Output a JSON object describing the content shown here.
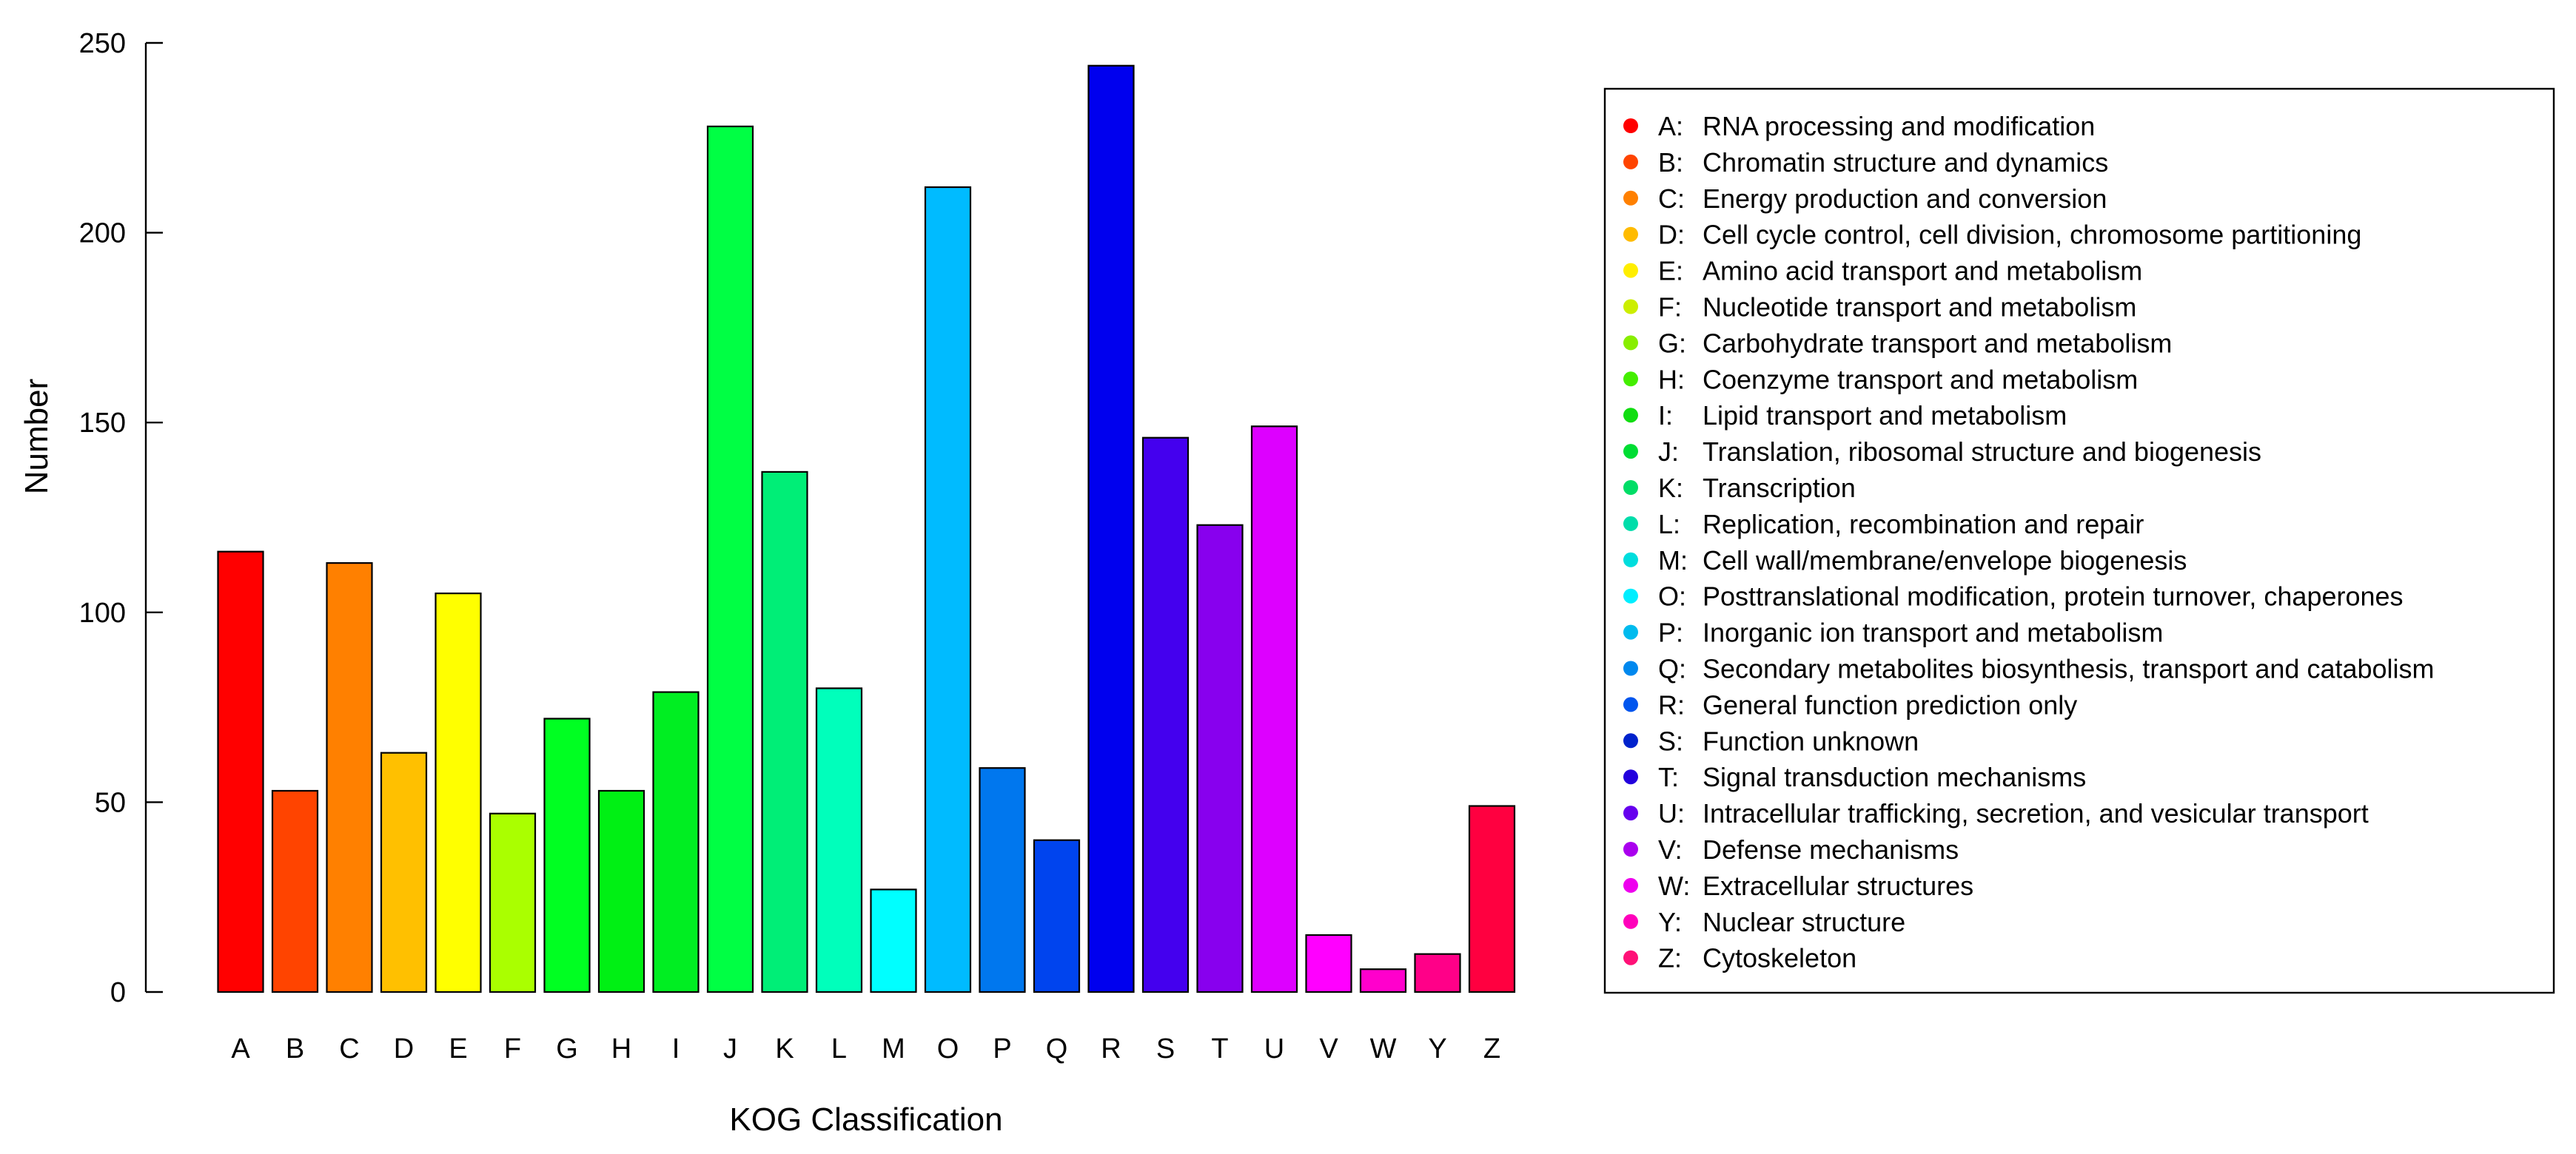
{
  "chart_data": {
    "type": "bar",
    "xlabel": "KOG Classification",
    "ylabel": "Number",
    "ylim": [
      0,
      250
    ],
    "yticks": [
      0,
      50,
      100,
      150,
      200,
      250
    ],
    "categories": [
      "A",
      "B",
      "C",
      "D",
      "E",
      "F",
      "G",
      "H",
      "I",
      "J",
      "K",
      "L",
      "M",
      "O",
      "P",
      "Q",
      "R",
      "S",
      "T",
      "U",
      "V",
      "W",
      "Y",
      "Z"
    ],
    "values": [
      116,
      53,
      113,
      63,
      105,
      47,
      72,
      53,
      79,
      228,
      137,
      80,
      27,
      212,
      59,
      40,
      244,
      146,
      123,
      149,
      15,
      6,
      10,
      49
    ],
    "colors": [
      "#ff0000",
      "#ff4400",
      "#ff8000",
      "#ffc000",
      "#ffff00",
      "#aaff00",
      "#00ff22",
      "#00f014",
      "#00ee22",
      "#00ff44",
      "#00ee77",
      "#00ffbb",
      "#00ffff",
      "#00bbff",
      "#0077ee",
      "#0044ee",
      "#0000ee",
      "#4400ee",
      "#8800ee",
      "#dd00ff",
      "#ff00ff",
      "#ff00cc",
      "#ff0088",
      "#ff0040"
    ],
    "legend_position": "right",
    "legend": [
      {
        "code": "A",
        "desc": "RNA processing and modification",
        "color": "#ff0000"
      },
      {
        "code": "B",
        "desc": "Chromatin structure and dynamics",
        "color": "#ff4400"
      },
      {
        "code": "C",
        "desc": "Energy production and conversion",
        "color": "#ff8000"
      },
      {
        "code": "D",
        "desc": "Cell cycle control, cell division, chromosome partitioning",
        "color": "#ffbb00"
      },
      {
        "code": "E",
        "desc": "Amino acid transport and metabolism",
        "color": "#ffee00"
      },
      {
        "code": "F",
        "desc": "Nucleotide transport and metabolism",
        "color": "#ccee00"
      },
      {
        "code": "G",
        "desc": "Carbohydrate transport and metabolism",
        "color": "#88ee00"
      },
      {
        "code": "H",
        "desc": "Coenzyme transport and metabolism",
        "color": "#44ee00"
      },
      {
        "code": "I",
        "desc": "Lipid transport and metabolism",
        "color": "#11dd11"
      },
      {
        "code": "J",
        "desc": "Translation, ribosomal structure and biogenesis",
        "color": "#00dd33"
      },
      {
        "code": "K",
        "desc": "Transcription",
        "color": "#00dd66"
      },
      {
        "code": "L",
        "desc": "Replication, recombination and repair",
        "color": "#00ddaa"
      },
      {
        "code": "M",
        "desc": "Cell wall/membrane/envelope biogenesis",
        "color": "#00dddd"
      },
      {
        "code": "O",
        "desc": "Posttranslational modification, protein turnover, chaperones",
        "color": "#00eeff"
      },
      {
        "code": "P",
        "desc": "Inorganic ion transport and metabolism",
        "color": "#00bbee"
      },
      {
        "code": "Q",
        "desc": "Secondary metabolites biosynthesis, transport and catabolism",
        "color": "#0088ee"
      },
      {
        "code": "R",
        "desc": "General function prediction only",
        "color": "#0055ee"
      },
      {
        "code": "S",
        "desc": "Function unknown",
        "color": "#0022cc"
      },
      {
        "code": "T",
        "desc": "Signal transduction mechanisms",
        "color": "#2200dd"
      },
      {
        "code": "U",
        "desc": "Intracellular trafficking, secretion, and vesicular transport",
        "color": "#6600ee"
      },
      {
        "code": "V",
        "desc": "Defense mechanisms",
        "color": "#aa00ee"
      },
      {
        "code": "W",
        "desc": "Extracellular structures",
        "color": "#ee00ee"
      },
      {
        "code": "Y",
        "desc": "Nuclear structure",
        "color": "#ff00bb"
      },
      {
        "code": "Z",
        "desc": "Cytoskeleton",
        "color": "#ff1177"
      }
    ]
  }
}
